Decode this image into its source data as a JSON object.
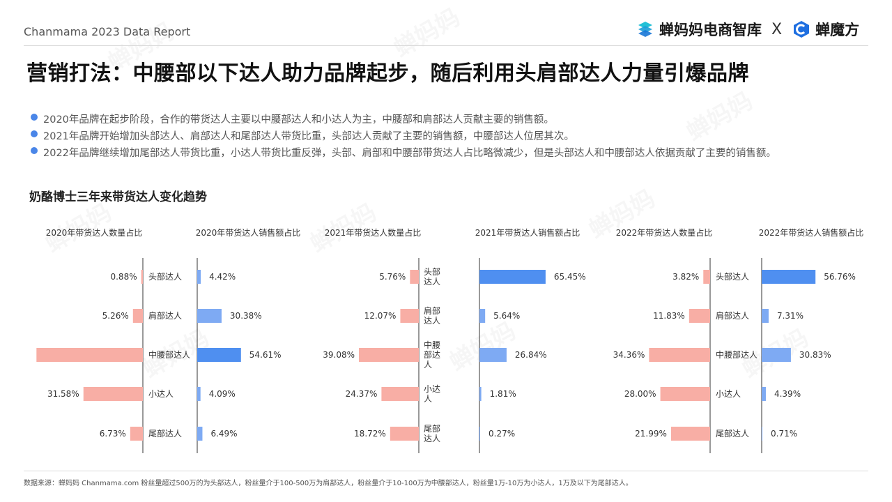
{
  "header": {
    "report_title": "Chanmama 2023 Data Report",
    "logo_left_text": "蝉妈妈电商智库",
    "logo_separator": "X",
    "logo_right_text": "蝉魔方"
  },
  "main_title": "营销打法：中腰部以下达人助力品牌起步，随后利用头肩部达人力量引爆品牌",
  "bullets": [
    "2020年品牌在起步阶段，合作的带货达人主要以中腰部达人和小达人为主，中腰部和肩部达人贡献主要的销售额。",
    "2021年品牌开始增加头部达人、肩部达人和尾部达人带货比重，头部达人贡献了主要的销售额，中腰部达人位居其次。",
    "2022年品牌继续增加尾部达人带货比重，小达人带货比重反弹，头部、肩部和中腰部带货达人占比略微减少，但是头部达人和中腰部达人依据贡献了主要的销售额。"
  ],
  "section_title": "奶酪博士三年来带货达人变化趋势",
  "watermark_text": "蝉妈妈",
  "colors": {
    "count_bar": "#f8aea5",
    "sales_bar_dark": "#4f8ff0",
    "sales_bar_light": "#7eaaf3",
    "axis": "#333333",
    "bullet_dot": "#4a86e8"
  },
  "chart_data": [
    {
      "year": "2020",
      "type": "bar",
      "categories": [
        "头部达人",
        "肩部达人",
        "中腰部达人",
        "小达人",
        "尾部达人"
      ],
      "count_title": "2020年带货达人数量占比",
      "sales_title": "2020年带货达人销售额占比",
      "count_values": [
        0.88,
        5.26,
        56.55,
        31.58,
        6.73
      ],
      "count_labels": [
        "0.88%",
        "5.26%",
        "",
        "31.58%",
        "6.73%"
      ],
      "sales_values": [
        4.42,
        30.38,
        54.61,
        4.09,
        6.49
      ],
      "sales_labels": [
        "4.42%",
        "30.38%",
        "54.61%",
        "4.09%",
        "6.49%"
      ]
    },
    {
      "year": "2021",
      "type": "bar",
      "categories": [
        "头部达人",
        "肩部达人",
        "中腰部达人",
        "小达人",
        "尾部达人"
      ],
      "count_title": "2021年带货达人数量占比",
      "sales_title": "2021年带货达人销售额占比",
      "count_values": [
        5.76,
        12.07,
        39.08,
        24.37,
        18.72
      ],
      "count_labels": [
        "5.76%",
        "12.07%",
        "39.08%",
        "24.37%",
        "18.72%"
      ],
      "sales_values": [
        65.45,
        5.64,
        26.84,
        1.81,
        0.27
      ],
      "sales_labels": [
        "65.45%",
        "5.64%",
        "26.84%",
        "1.81%",
        "0.27%"
      ]
    },
    {
      "year": "2022",
      "type": "bar",
      "categories": [
        "头部达人",
        "肩部达人",
        "中腰部达人",
        "小达人",
        "尾部达人"
      ],
      "count_title": "2022年带货达人数量占比",
      "sales_title": "2022年带货达人销售额占比",
      "count_values": [
        3.82,
        11.83,
        34.36,
        28.0,
        21.99
      ],
      "count_labels": [
        "3.82%",
        "11.83%",
        "34.36%",
        "28.00%",
        "21.99%"
      ],
      "sales_values": [
        56.76,
        7.31,
        30.83,
        4.39,
        0.71
      ],
      "sales_labels": [
        "56.76%",
        "7.31%",
        "30.83%",
        "4.39%",
        "0.71%"
      ]
    }
  ],
  "footnote": "数据来源：蝉妈妈 Chanmama.com  粉丝量超过500万的为头部达人，粉丝量介于100-500万为肩部达人，粉丝量介于10-100万为中腰部达人，粉丝量1万-10万为小达人，1万及以下为尾部达人。"
}
